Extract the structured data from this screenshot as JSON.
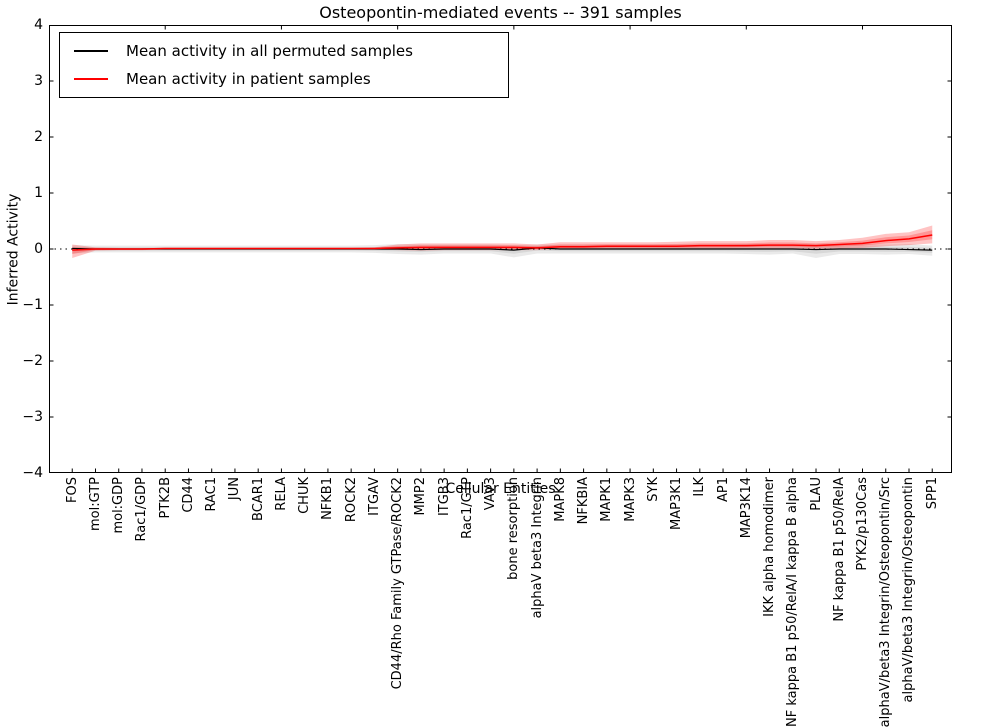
{
  "title": "Osteopontin-mediated events -- 391 samples",
  "legend": {
    "entries": [
      {
        "label": "Mean activity in all permuted samples",
        "color": "#000000"
      },
      {
        "label": "Mean activity in patient samples",
        "color": "#ff0000"
      }
    ]
  },
  "chart_data": {
    "type": "line",
    "title": "Osteopontin-mediated events -- 391 samples",
    "xlabel": "Cellular Entities",
    "ylabel": "Inferred Activity",
    "ylim": [
      -4,
      4
    ],
    "yticks": [
      4,
      3,
      2,
      1,
      0,
      -1,
      -2,
      -3,
      -4
    ],
    "x_major_ticks": [
      5,
      10,
      15,
      20,
      25,
      30,
      35
    ],
    "grid": false,
    "zero_line": true,
    "legend_position": "upper left",
    "categories": [
      "FOS",
      "mol:GTP",
      "mol:GDP",
      "Rac1/GDP",
      "PTK2B",
      "CD44",
      "RAC1",
      "JUN",
      "BCAR1",
      "RELA",
      "CHUK",
      "NFKB1",
      "ROCK2",
      "ITGAV",
      "CD44/Rho Family GTPase/ROCK2",
      "MMP2",
      "ITGB3",
      "Rac1/GTP",
      "VAV3",
      "bone resorption",
      "alphaV beta3 Integrin",
      "MAPK8",
      "NFKBIA",
      "MAPK1",
      "MAPK3",
      "SYK",
      "MAP3K1",
      "ILK",
      "AP1",
      "MAP3K14",
      "IKK alpha homodimer",
      "NF kappa B1 p50/RelA/I kappa B alpha",
      "PLAU",
      "NF kappa B1 p50/RelA",
      "PYK2/p130Cas",
      "alphaV/beta3 Integrin/Osteopontin/Src",
      "alphaV/beta3 Integrin/Osteopontin",
      "SPP1"
    ],
    "series": [
      {
        "name": "Mean activity in all permuted samples",
        "color": "#000000",
        "band_color": "#888888",
        "band_opacity": 0.18,
        "values": [
          0.01,
          0.0,
          0.0,
          0.0,
          0.0,
          0.0,
          0.0,
          0.0,
          0.0,
          0.0,
          0.0,
          0.0,
          0.0,
          0.0,
          0.0,
          -0.01,
          0.0,
          0.0,
          0.0,
          -0.02,
          0.02,
          0.0,
          0.0,
          0.0,
          0.0,
          0.0,
          0.0,
          0.0,
          0.0,
          0.0,
          0.0,
          0.0,
          -0.01,
          0.0,
          0.0,
          0.0,
          -0.01,
          -0.02
        ],
        "band_upper": [
          0.07,
          0.06,
          0.06,
          0.06,
          0.06,
          0.06,
          0.06,
          0.06,
          0.06,
          0.06,
          0.06,
          0.06,
          0.06,
          0.07,
          0.09,
          0.08,
          0.08,
          0.08,
          0.08,
          0.07,
          0.08,
          0.08,
          0.08,
          0.08,
          0.08,
          0.08,
          0.08,
          0.08,
          0.08,
          0.09,
          0.08,
          0.08,
          0.08,
          0.09,
          0.09,
          0.08,
          0.09,
          0.06
        ],
        "band_lower": [
          -0.08,
          -0.06,
          -0.06,
          -0.06,
          -0.06,
          -0.06,
          -0.06,
          -0.06,
          -0.06,
          -0.06,
          -0.06,
          -0.06,
          -0.06,
          -0.07,
          -0.09,
          -0.1,
          -0.08,
          -0.08,
          -0.08,
          -0.15,
          -0.08,
          -0.08,
          -0.08,
          -0.08,
          -0.08,
          -0.08,
          -0.08,
          -0.08,
          -0.08,
          -0.09,
          -0.1,
          -0.08,
          -0.16,
          -0.09,
          -0.09,
          -0.1,
          -0.09,
          -0.12
        ]
      },
      {
        "name": "Mean activity in patient samples",
        "color": "#ff0000",
        "band_color": "#ff1111",
        "band_opacity": 0.25,
        "values": [
          -0.02,
          0.0,
          0.0,
          0.0,
          0.01,
          0.01,
          0.01,
          0.01,
          0.01,
          0.01,
          0.01,
          0.01,
          0.01,
          0.01,
          0.02,
          0.03,
          0.03,
          0.03,
          0.03,
          0.03,
          0.02,
          0.04,
          0.04,
          0.05,
          0.05,
          0.05,
          0.05,
          0.06,
          0.06,
          0.06,
          0.07,
          0.07,
          0.06,
          0.08,
          0.1,
          0.15,
          0.18,
          0.25
        ],
        "band_upper": [
          0.08,
          0.03,
          0.02,
          0.02,
          0.02,
          0.02,
          0.02,
          0.02,
          0.02,
          0.02,
          0.02,
          0.02,
          0.02,
          0.03,
          0.08,
          0.1,
          0.1,
          0.1,
          0.1,
          0.1,
          0.08,
          0.12,
          0.12,
          0.12,
          0.12,
          0.12,
          0.13,
          0.14,
          0.14,
          0.14,
          0.16,
          0.16,
          0.14,
          0.16,
          0.2,
          0.27,
          0.3,
          0.42
        ],
        "band_lower": [
          -0.16,
          -0.03,
          -0.02,
          -0.02,
          -0.01,
          -0.01,
          -0.01,
          -0.01,
          -0.01,
          -0.01,
          -0.01,
          -0.01,
          -0.01,
          -0.01,
          -0.02,
          -0.03,
          -0.02,
          -0.02,
          -0.02,
          -0.02,
          -0.02,
          0.0,
          0.0,
          0.0,
          0.0,
          0.0,
          0.0,
          0.0,
          0.0,
          0.01,
          0.01,
          0.01,
          0.0,
          0.01,
          0.02,
          0.05,
          0.07,
          0.1
        ]
      }
    ]
  }
}
